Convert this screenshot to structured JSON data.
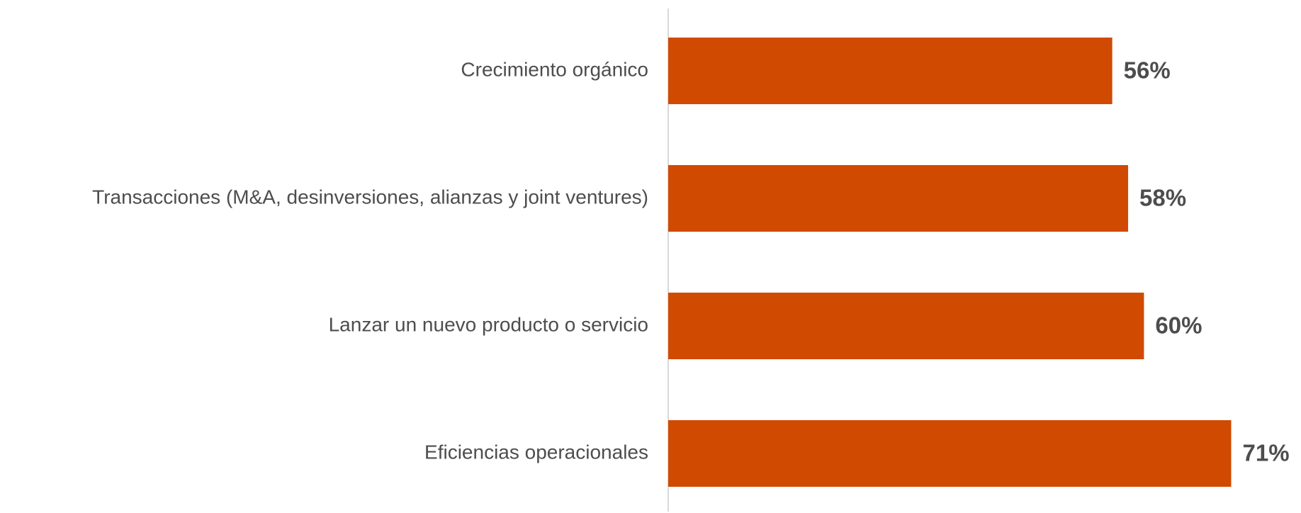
{
  "chart_data": {
    "type": "bar",
    "orientation": "horizontal",
    "categories": [
      "Crecimiento orgánico",
      "Transacciones (M&A, desinversiones, alianzas y joint ventures)",
      "Lanzar un nuevo producto o servicio",
      "Eficiencias operacionales"
    ],
    "values": [
      56,
      58,
      60,
      71
    ],
    "value_labels": [
      "56%",
      "58%",
      "60%",
      "71%"
    ],
    "color": "#d04a02",
    "grid": false
  }
}
